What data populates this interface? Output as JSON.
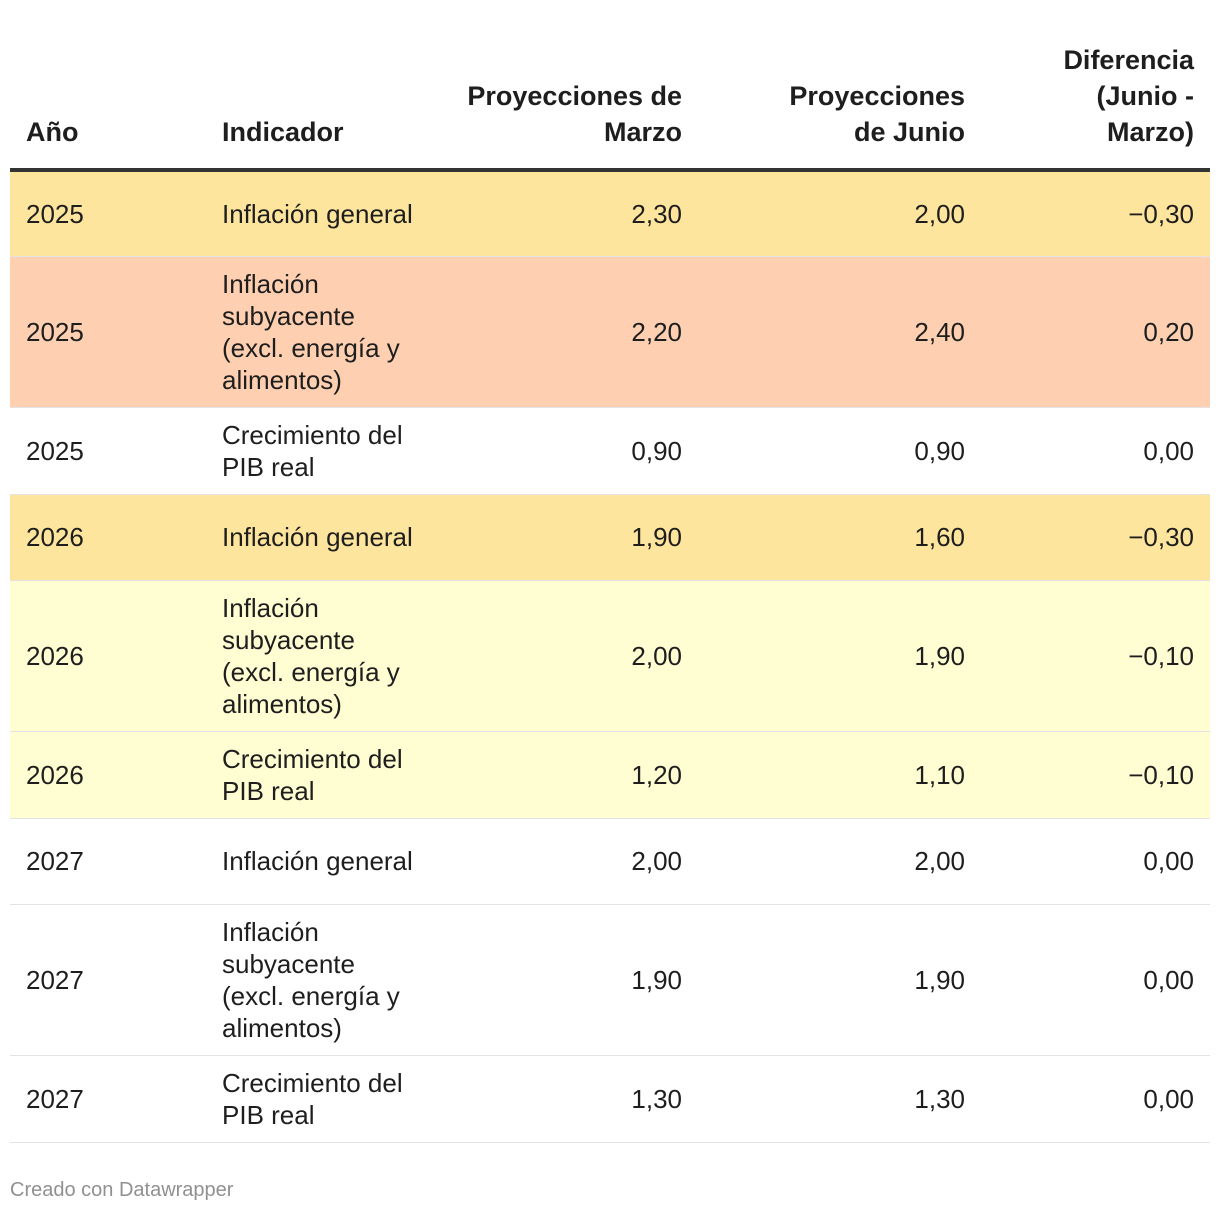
{
  "chart_data": {
    "type": "table",
    "columns": [
      "Año",
      "Indicador",
      "Proyecciones de Marzo",
      "Proyecciones de Junio",
      "Diferencia (Junio - Marzo)"
    ],
    "rows": [
      {
        "year": "2025",
        "indicator": "Inflación general",
        "march": "2,30",
        "june": "2,00",
        "diff": "−0,30",
        "color": "#fee59d"
      },
      {
        "year": "2025",
        "indicator": "Inflación subyacente (excl. energía y alimentos)",
        "march": "2,20",
        "june": "2,40",
        "diff": "0,20",
        "color": "#fecfb0"
      },
      {
        "year": "2025",
        "indicator": "Crecimiento del PIB real",
        "march": "0,90",
        "june": "0,90",
        "diff": "0,00",
        "color": "#ffffff"
      },
      {
        "year": "2026",
        "indicator": "Inflación general",
        "march": "1,90",
        "june": "1,60",
        "diff": "−0,30",
        "color": "#fee59d"
      },
      {
        "year": "2026",
        "indicator": "Inflación subyacente (excl. energía y alimentos)",
        "march": "2,00",
        "june": "1,90",
        "diff": "−0,10",
        "color": "#fffdd2"
      },
      {
        "year": "2026",
        "indicator": "Crecimiento del PIB real",
        "march": "1,20",
        "june": "1,10",
        "diff": "−0,10",
        "color": "#fffdd2"
      },
      {
        "year": "2027",
        "indicator": "Inflación general",
        "march": "2,00",
        "june": "2,00",
        "diff": "0,00",
        "color": "#ffffff"
      },
      {
        "year": "2027",
        "indicator": "Inflación subyacente (excl. energía y alimentos)",
        "march": "1,90",
        "june": "1,90",
        "diff": "0,00",
        "color": "#ffffff"
      },
      {
        "year": "2027",
        "indicator": "Crecimiento del PIB real",
        "march": "1,30",
        "june": "1,30",
        "diff": "0,00",
        "color": "#ffffff"
      }
    ]
  },
  "footer": {
    "credit": "Creado con Datawrapper"
  }
}
